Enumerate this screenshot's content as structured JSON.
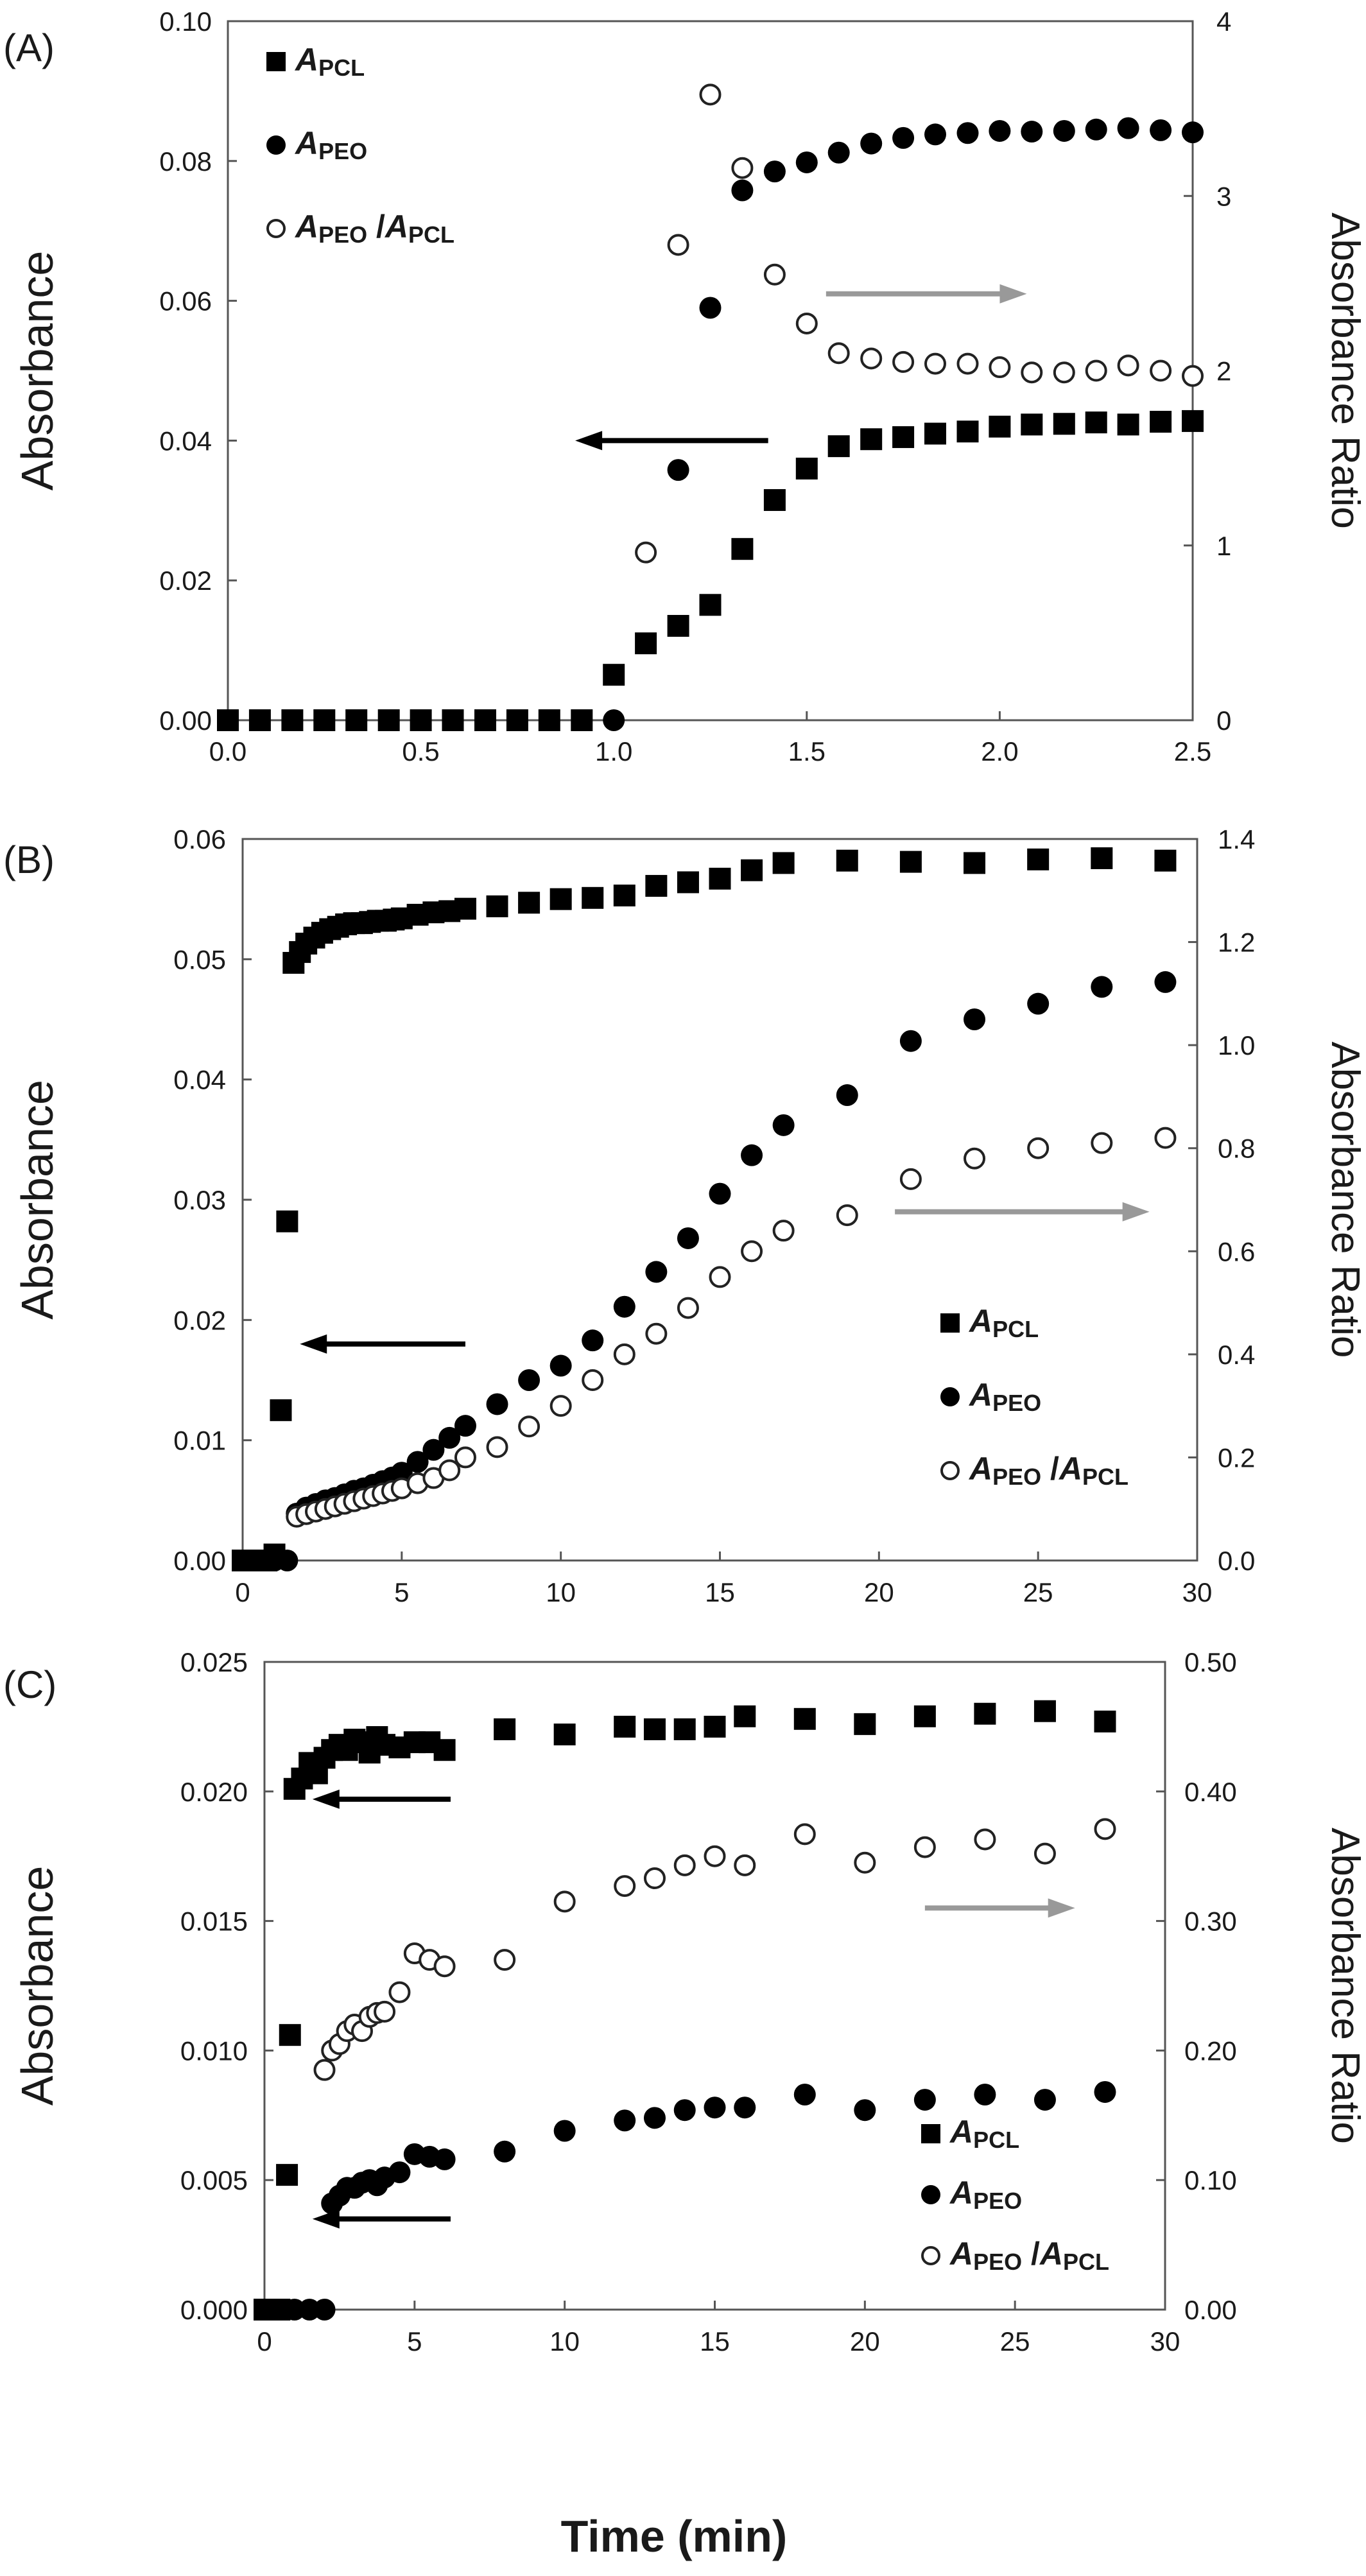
{
  "x_axis_title": "Time (min)",
  "legend_symbols": {
    "pcl": "A",
    "pcl_sub": "PCL",
    "peo": "A",
    "peo_sub": "PEO",
    "slash": "/"
  },
  "colors": {
    "filled": "#000000",
    "open_fill": "#ffffff",
    "open_stroke": "#222222",
    "arrow_left": "#000000",
    "arrow_right": "#999999",
    "frame": "#555555"
  },
  "chart_data": [
    {
      "type": "scatter",
      "panel_label": "(A)",
      "xlabel": "",
      "ylabel": "Absorbance",
      "y2label": "Absorbance Ratio",
      "xlim": [
        0,
        2.5
      ],
      "ylim": [
        0,
        0.1
      ],
      "y2lim": [
        0,
        4
      ],
      "x_ticks": [
        "0.0",
        "0.5",
        "1.0",
        "1.5",
        "2.0",
        "2.5"
      ],
      "y_ticks": [
        "0.00",
        "0.02",
        "0.04",
        "0.06",
        "0.08",
        "0.10"
      ],
      "y2_ticks": [
        "0",
        "1",
        "2",
        "3",
        "4"
      ],
      "legend_position": "top-left",
      "grid": false,
      "series": [
        {
          "name": "A_PCL",
          "axis": "left",
          "marker": "square-filled",
          "x": [
            0.0,
            0.083,
            0.167,
            0.25,
            0.333,
            0.417,
            0.5,
            0.583,
            0.667,
            0.75,
            0.833,
            0.917,
            1.0,
            1.083,
            1.167,
            1.25,
            1.333,
            1.417,
            1.5,
            1.583,
            1.667,
            1.75,
            1.833,
            1.917,
            2.0,
            2.083,
            2.167,
            2.25,
            2.333,
            2.417,
            2.5
          ],
          "y": [
            0,
            0,
            0,
            0,
            0,
            0,
            0,
            0,
            0,
            0,
            0,
            0,
            0.0065,
            0.011,
            0.0135,
            0.0165,
            0.0245,
            0.0315,
            0.036,
            0.0392,
            0.0402,
            0.0405,
            0.041,
            0.0413,
            0.042,
            0.0423,
            0.0424,
            0.0426,
            0.0423,
            0.0427,
            0.0428
          ]
        },
        {
          "name": "A_PEO",
          "axis": "left",
          "marker": "circle-filled",
          "x": [
            1.0,
            1.167,
            1.25,
            1.333,
            1.417,
            1.5,
            1.583,
            1.667,
            1.75,
            1.833,
            1.917,
            2.0,
            2.083,
            2.167,
            2.25,
            2.333,
            2.417,
            2.5
          ],
          "y": [
            0,
            0.0358,
            0.059,
            0.0758,
            0.0785,
            0.0798,
            0.0812,
            0.0825,
            0.0833,
            0.0838,
            0.084,
            0.0843,
            0.0842,
            0.0843,
            0.0845,
            0.0847,
            0.0844,
            0.0841
          ]
        },
        {
          "name": "A_PEO / A_PCL",
          "axis": "right",
          "marker": "circle-open",
          "x": [
            1.083,
            1.167,
            1.25,
            1.333,
            1.417,
            1.5,
            1.583,
            1.667,
            1.75,
            1.833,
            1.917,
            2.0,
            2.083,
            2.167,
            2.25,
            2.333,
            2.417,
            2.5
          ],
          "y": [
            0.96,
            2.72,
            3.58,
            3.16,
            2.55,
            2.27,
            2.1,
            2.07,
            2.05,
            2.04,
            2.04,
            2.02,
            1.99,
            1.99,
            2.0,
            2.03,
            2.0,
            1.97
          ]
        }
      ],
      "arrows": [
        {
          "direction": "left",
          "x0": 1.4,
          "x1": 0.9,
          "y": 0.04
        },
        {
          "direction": "right",
          "x0": 1.55,
          "x1": 2.07,
          "y": 0.061
        }
      ]
    },
    {
      "type": "scatter",
      "panel_label": "(B)",
      "xlabel": "",
      "ylabel": "Absorbance",
      "y2label": "Absorbance Ratio",
      "xlim": [
        0,
        30
      ],
      "ylim": [
        0,
        0.06
      ],
      "y2lim": [
        0,
        1.4
      ],
      "x_ticks": [
        "0",
        "5",
        "10",
        "15",
        "20",
        "25",
        "30"
      ],
      "y_ticks": [
        "0.00",
        "0.01",
        "0.02",
        "0.03",
        "0.04",
        "0.05",
        "0.06"
      ],
      "y2_ticks": [
        "0.0",
        "0.2",
        "0.4",
        "0.6",
        "0.8",
        "1.0",
        "1.2",
        "1.4"
      ],
      "legend_position": "bottom-right",
      "grid": false,
      "series": [
        {
          "name": "A_PCL",
          "axis": "left",
          "marker": "square-filled",
          "x": [
            0,
            0.25,
            0.5,
            0.75,
            1.0,
            1.2,
            1.4,
            1.6,
            1.8,
            2.0,
            2.25,
            2.5,
            2.75,
            3.0,
            3.25,
            3.5,
            3.75,
            4.0,
            4.25,
            4.5,
            4.75,
            5.0,
            5.5,
            6.0,
            6.5,
            7.0,
            8.0,
            9.0,
            10.0,
            11.0,
            12.0,
            13.0,
            14.0,
            15.0,
            16.0,
            17.0,
            19.0,
            21.0,
            23.0,
            25.0,
            27.0,
            29.0
          ],
          "y": [
            0,
            0,
            0,
            0,
            0.0005,
            0.0125,
            0.0282,
            0.0497,
            0.0506,
            0.0513,
            0.0518,
            0.0522,
            0.0525,
            0.0527,
            0.0529,
            0.053,
            0.053,
            0.0531,
            0.0532,
            0.0532,
            0.0533,
            0.0534,
            0.0537,
            0.0539,
            0.054,
            0.0542,
            0.0544,
            0.0547,
            0.055,
            0.0551,
            0.0553,
            0.0561,
            0.0564,
            0.0567,
            0.0574,
            0.058,
            0.0582,
            0.0581,
            0.058,
            0.0583,
            0.0584,
            0.0582
          ]
        },
        {
          "name": "A_PEO",
          "axis": "left",
          "marker": "circle-filled",
          "x": [
            0,
            0.5,
            1.0,
            1.4,
            1.7,
            2.0,
            2.3,
            2.6,
            2.9,
            3.2,
            3.5,
            3.8,
            4.1,
            4.4,
            4.7,
            5.0,
            5.5,
            6.0,
            6.5,
            7.0,
            8.0,
            9.0,
            10.0,
            11.0,
            12.0,
            13.0,
            14.0,
            15.0,
            16.0,
            17.0,
            19.0,
            21.0,
            23.0,
            25.0,
            27.0,
            29.0
          ],
          "y": [
            0,
            0,
            0,
            0,
            0.0039,
            0.0044,
            0.0047,
            0.005,
            0.0052,
            0.0055,
            0.0058,
            0.006,
            0.0063,
            0.0066,
            0.0069,
            0.0073,
            0.0082,
            0.0092,
            0.0102,
            0.0112,
            0.013,
            0.015,
            0.0162,
            0.0183,
            0.0211,
            0.024,
            0.0268,
            0.0305,
            0.0337,
            0.0362,
            0.0387,
            0.0432,
            0.045,
            0.0463,
            0.0477,
            0.0481
          ]
        },
        {
          "name": "A_PEO / A_PCL",
          "axis": "right",
          "marker": "circle-open",
          "x": [
            1.7,
            2.0,
            2.3,
            2.6,
            2.9,
            3.2,
            3.5,
            3.8,
            4.1,
            4.4,
            4.7,
            5.0,
            5.5,
            6.0,
            6.5,
            7.0,
            8.0,
            9.0,
            10.0,
            11.0,
            12.0,
            13.0,
            14.0,
            15.0,
            16.0,
            17.0,
            19.0,
            21.0,
            23.0,
            25.0,
            27.0,
            29.0
          ],
          "y": [
            0.085,
            0.09,
            0.095,
            0.1,
            0.105,
            0.11,
            0.115,
            0.12,
            0.125,
            0.13,
            0.135,
            0.14,
            0.15,
            0.16,
            0.175,
            0.2,
            0.22,
            0.26,
            0.3,
            0.35,
            0.4,
            0.44,
            0.49,
            0.55,
            0.6,
            0.64,
            0.67,
            0.74,
            0.78,
            0.8,
            0.81,
            0.82
          ]
        }
      ],
      "arrows": [
        {
          "direction": "left",
          "x0": 7,
          "x1": 1.8,
          "y": 0.018
        },
        {
          "direction": "right",
          "x0": 20.5,
          "x1": 28.5,
          "y": 0.029
        }
      ]
    },
    {
      "type": "scatter",
      "panel_label": "(C)",
      "xlabel": "Time (min)",
      "ylabel": "Absorbance",
      "y2label": "Absorbance Ratio",
      "xlim": [
        0,
        30
      ],
      "ylim": [
        0,
        0.025
      ],
      "y2lim": [
        0,
        0.5
      ],
      "x_ticks": [
        "0",
        "5",
        "10",
        "15",
        "20",
        "25",
        "30"
      ],
      "y_ticks": [
        "0.000",
        "0.005",
        "0.010",
        "0.015",
        "0.020",
        "0.025"
      ],
      "y2_ticks": [
        "0.00",
        "0.10",
        "0.20",
        "0.30",
        "0.40",
        "0.50"
      ],
      "legend_position": "bottom-right",
      "grid": false,
      "series": [
        {
          "name": "A_PCL",
          "axis": "left",
          "marker": "square-filled",
          "x": [
            0,
            0.25,
            0.5,
            0.75,
            0.85,
            1.0,
            1.25,
            1.5,
            1.75,
            2.0,
            2.25,
            2.5,
            2.75,
            3.0,
            3.25,
            3.5,
            3.75,
            4.0,
            4.5,
            5.0,
            5.5,
            6.0,
            8.0,
            10.0,
            12.0,
            13.0,
            14.0,
            15.0,
            16.0,
            18.0,
            20.0,
            22.0,
            24.0,
            26.0,
            28.0
          ],
          "y": [
            0,
            0,
            0,
            0.0052,
            0.0106,
            0.0201,
            0.0205,
            0.0211,
            0.0207,
            0.0213,
            0.0216,
            0.0218,
            0.0216,
            0.022,
            0.0219,
            0.0215,
            0.0221,
            0.0218,
            0.0217,
            0.0219,
            0.0219,
            0.0216,
            0.0224,
            0.0222,
            0.0225,
            0.0224,
            0.0224,
            0.0225,
            0.0229,
            0.0228,
            0.0226,
            0.0229,
            0.023,
            0.0231,
            0.0227
          ]
        },
        {
          "name": "A_PEO",
          "axis": "left",
          "marker": "circle-filled",
          "x": [
            0,
            0.5,
            1.0,
            1.5,
            2.0,
            2.25,
            2.5,
            2.75,
            3.0,
            3.25,
            3.5,
            3.75,
            4.0,
            4.5,
            5.0,
            5.5,
            6.0,
            8.0,
            10.0,
            12.0,
            13.0,
            14.0,
            15.0,
            16.0,
            18.0,
            20.0,
            22.0,
            24.0,
            26.0,
            28.0
          ],
          "y": [
            0,
            0,
            0,
            0,
            0,
            0.0041,
            0.0044,
            0.0047,
            0.0047,
            0.0049,
            0.005,
            0.0048,
            0.0051,
            0.0053,
            0.006,
            0.0059,
            0.0058,
            0.0061,
            0.0069,
            0.0073,
            0.0074,
            0.0077,
            0.0078,
            0.0078,
            0.0083,
            0.0077,
            0.0081,
            0.0083,
            0.0081,
            0.0084
          ]
        },
        {
          "name": "A_PEO / A_PCL",
          "axis": "right",
          "marker": "circle-open",
          "x": [
            2.0,
            2.25,
            2.5,
            2.75,
            3.0,
            3.25,
            3.5,
            3.75,
            4.0,
            4.5,
            5.0,
            5.5,
            6.0,
            8.0,
            10.0,
            12.0,
            13.0,
            14.0,
            15.0,
            16.0,
            18.0,
            20.0,
            22.0,
            24.0,
            26.0,
            28.0
          ],
          "y": [
            0.185,
            0.2,
            0.205,
            0.215,
            0.22,
            0.215,
            0.226,
            0.229,
            0.23,
            0.245,
            0.275,
            0.27,
            0.265,
            0.27,
            0.315,
            0.327,
            0.333,
            0.343,
            0.35,
            0.343,
            0.367,
            0.345,
            0.357,
            0.363,
            0.352,
            0.371
          ]
        }
      ],
      "arrows": [
        {
          "direction": "left",
          "x0": 6.2,
          "x1": 1.6,
          "y": 0.0197
        },
        {
          "direction": "left",
          "x0": 6.2,
          "x1": 1.6,
          "y": 0.0035
        },
        {
          "direction": "right",
          "x0": 22,
          "x1": 27,
          "y": 0.0155
        }
      ]
    }
  ]
}
